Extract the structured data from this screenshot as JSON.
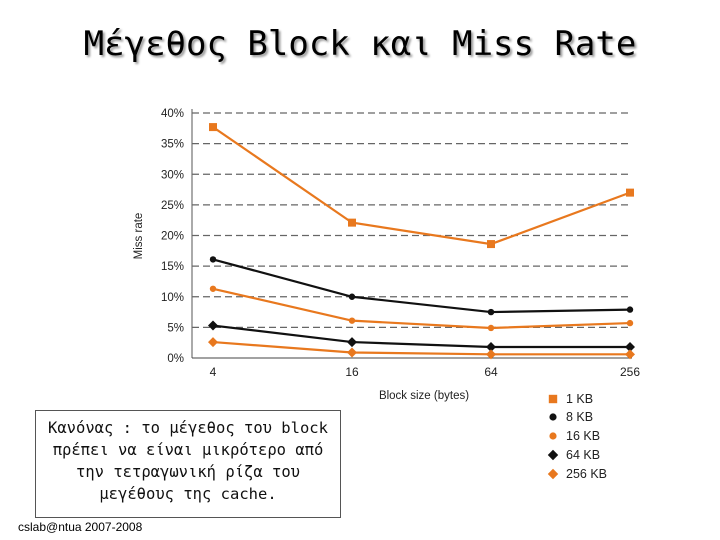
{
  "slide": {
    "title": "Μέγεθος Block και Miss Rate",
    "rule_text": [
      "Κανόνας : το μέγεθος του block",
      "πρέπει να είναι μικρότερο από",
      "την τετραγωνική ρίζα του",
      "μεγέθους της cache."
    ],
    "footer": "cslab@ntua 2007-2008"
  },
  "chart_data": {
    "type": "line",
    "title": "",
    "xlabel": "Block size (bytes)",
    "ylabel": "Miss rate",
    "categories": [
      "4",
      "16",
      "64",
      "256"
    ],
    "yticks": [
      "0%",
      "5%",
      "10%",
      "15%",
      "20%",
      "25%",
      "30%",
      "35%",
      "40%"
    ],
    "ylim": [
      0,
      40
    ],
    "grid": "dashed horizontal",
    "legend_position": "bottom-right",
    "series": [
      {
        "name": "1 KB",
        "values": [
          37.7,
          22.1,
          18.6,
          27.0
        ],
        "color": "#e8781e",
        "marker": "square"
      },
      {
        "name": "8 KB",
        "values": [
          16.1,
          10.0,
          7.5,
          7.9
        ],
        "color": "#111111",
        "marker": "circle"
      },
      {
        "name": "16 KB",
        "values": [
          11.3,
          6.1,
          4.9,
          5.7
        ],
        "color": "#e8781e",
        "marker": "circle"
      },
      {
        "name": "64 KB",
        "values": [
          5.3,
          2.6,
          1.8,
          1.8
        ],
        "color": "#111111",
        "marker": "diamond"
      },
      {
        "name": "256 KB",
        "values": [
          2.6,
          0.9,
          0.6,
          0.6
        ],
        "color": "#e8781e",
        "marker": "diamond"
      }
    ]
  }
}
